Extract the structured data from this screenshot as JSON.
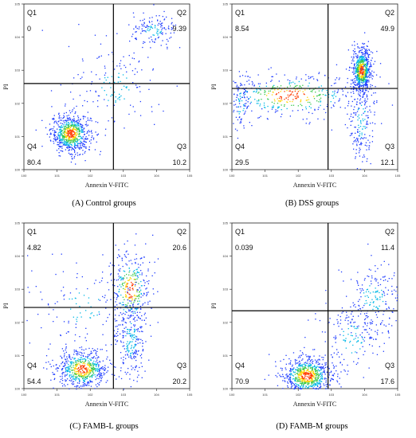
{
  "axis_labels": {
    "x": "Annexin V-FITC",
    "y": "PI"
  },
  "chart_data": [
    {
      "type": "scatter",
      "caption": "(A) Control groups",
      "xlabel": "Annexin V-FITC",
      "ylabel": "PI",
      "quadrants": [
        {
          "name": "Q1",
          "value": "0"
        },
        {
          "name": "Q2",
          "value": "9.39"
        },
        {
          "name": "Q3",
          "value": "10.2"
        },
        {
          "name": "Q4",
          "value": "80.4"
        }
      ],
      "gate": {
        "x": 0.54,
        "y": 0.52
      },
      "clusters": [
        {
          "cx": 0.28,
          "cy": 0.22,
          "sx": 0.06,
          "sy": 0.06,
          "n": 700
        },
        {
          "cx": 0.78,
          "cy": 0.84,
          "sx": 0.07,
          "sy": 0.05,
          "n": 140
        },
        {
          "cx": 0.55,
          "cy": 0.5,
          "sx": 0.14,
          "sy": 0.13,
          "n": 150
        }
      ]
    },
    {
      "type": "scatter",
      "caption": "(B) DSS groups",
      "xlabel": "Annexin V-FITC",
      "ylabel": "PI",
      "quadrants": [
        {
          "name": "Q1",
          "value": "8.54"
        },
        {
          "name": "Q2",
          "value": "49.9"
        },
        {
          "name": "Q3",
          "value": "12.1"
        },
        {
          "name": "Q4",
          "value": "29.5"
        }
      ],
      "gate": {
        "x": 0.58,
        "y": 0.49
      },
      "clusters": [
        {
          "cx": 0.78,
          "cy": 0.6,
          "sx": 0.03,
          "sy": 0.07,
          "n": 650
        },
        {
          "cx": 0.78,
          "cy": 0.3,
          "sx": 0.04,
          "sy": 0.15,
          "n": 200
        },
        {
          "cx": 0.35,
          "cy": 0.45,
          "sx": 0.22,
          "sy": 0.07,
          "n": 400
        },
        {
          "cx": 0.05,
          "cy": 0.4,
          "sx": 0.03,
          "sy": 0.1,
          "n": 80
        }
      ]
    },
    {
      "type": "scatter",
      "caption": "(C) FAMB-L groups",
      "xlabel": "Annexin V-FITC",
      "ylabel": "PI",
      "quadrants": [
        {
          "name": "Q1",
          "value": "4.82"
        },
        {
          "name": "Q2",
          "value": "20.6"
        },
        {
          "name": "Q3",
          "value": "20.2"
        },
        {
          "name": "Q4",
          "value": "54.4"
        }
      ],
      "gate": {
        "x": 0.54,
        "y": 0.49
      },
      "clusters": [
        {
          "cx": 0.35,
          "cy": 0.12,
          "sx": 0.08,
          "sy": 0.06,
          "n": 600
        },
        {
          "cx": 0.64,
          "cy": 0.6,
          "sx": 0.06,
          "sy": 0.12,
          "n": 320
        },
        {
          "cx": 0.64,
          "cy": 0.3,
          "sx": 0.05,
          "sy": 0.14,
          "n": 250
        },
        {
          "cx": 0.35,
          "cy": 0.5,
          "sx": 0.15,
          "sy": 0.15,
          "n": 120
        }
      ]
    },
    {
      "type": "scatter",
      "caption": "(D) FAMB-M groups",
      "xlabel": "Annexin V-FITC",
      "ylabel": "PI",
      "quadrants": [
        {
          "name": "Q1",
          "value": "0.039"
        },
        {
          "name": "Q2",
          "value": "11.4"
        },
        {
          "name": "Q3",
          "value": "17.6"
        },
        {
          "name": "Q4",
          "value": "70.9"
        }
      ],
      "gate": {
        "x": 0.58,
        "y": 0.47
      },
      "clusters": [
        {
          "cx": 0.45,
          "cy": 0.08,
          "sx": 0.08,
          "sy": 0.06,
          "n": 750
        },
        {
          "cx": 0.85,
          "cy": 0.55,
          "sx": 0.09,
          "sy": 0.12,
          "n": 200
        },
        {
          "cx": 0.72,
          "cy": 0.3,
          "sx": 0.1,
          "sy": 0.12,
          "n": 150
        }
      ]
    }
  ]
}
